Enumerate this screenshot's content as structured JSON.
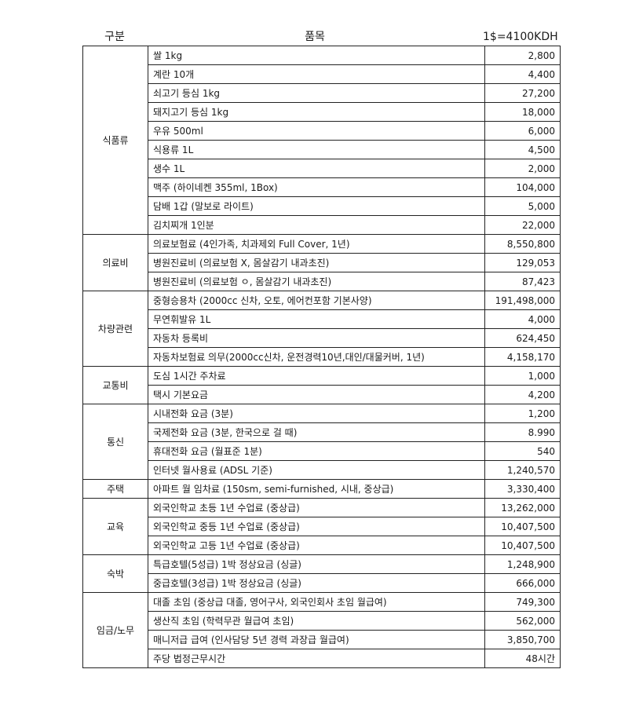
{
  "header": {
    "category": "구분",
    "item": "품목",
    "rate": "1$=4100KDH"
  },
  "groups": [
    {
      "category": "식품류",
      "rows": [
        {
          "item": "쌀 1kg",
          "value": "2,800"
        },
        {
          "item": "계란 10개",
          "value": "4,400"
        },
        {
          "item": "쇠고기 등심 1kg",
          "value": "27,200"
        },
        {
          "item": "돼지고기 등심 1kg",
          "value": "18,000"
        },
        {
          "item": "우유 500ml",
          "value": "6,000"
        },
        {
          "item": "식용류 1L",
          "value": "4,500"
        },
        {
          "item": "생수 1L",
          "value": "2,000"
        },
        {
          "item": "맥주 (하이네켄 355ml, 1Box)",
          "value": "104,000"
        },
        {
          "item": "담배 1갑 (말보로 라이트)",
          "value": "5,000"
        },
        {
          "item": "김치찌개 1인분",
          "value": "22,000"
        }
      ]
    },
    {
      "category": "의료비",
      "rows": [
        {
          "item": "의료보험료 (4인가족, 치과제외 Full Cover, 1년)",
          "value": "8,550,800"
        },
        {
          "item": "병원진료비 (의료보험 X, 몸살감기 내과초진)",
          "value": "129,053"
        },
        {
          "item": "병원진료비 (의료보험 ㅇ, 몸살감기 내과초진)",
          "value": "87,423"
        }
      ]
    },
    {
      "category": "차량관련",
      "rows": [
        {
          "item": "중형승용차 (2000cc 신차, 오토, 에어컨포함 기본사양)",
          "value": "191,498,000"
        },
        {
          "item": "무연휘발유 1L",
          "value": "4,000"
        },
        {
          "item": "자동차 등록비",
          "value": "624,450"
        },
        {
          "item": "자동차보험료 의무(2000cc신차, 운전경력10년,대인/대물커버, 1년)",
          "value": "4,158,170"
        }
      ]
    },
    {
      "category": "교통비",
      "rows": [
        {
          "item": "도심 1시간 주차료",
          "value": "1,000"
        },
        {
          "item": "택시 기본요금",
          "value": "4,200"
        }
      ]
    },
    {
      "category": "통신",
      "rows": [
        {
          "item": "시내전화 요금 (3분)",
          "value": "1,200"
        },
        {
          "item": "국제전화 요금 (3분, 한국으로 걸 때)",
          "value": "8.990"
        },
        {
          "item": "휴대전화 요금 (월표준 1분)",
          "value": "540"
        },
        {
          "item": "인터넷 월사용료 (ADSL 기준)",
          "value": "1,240,570"
        }
      ]
    },
    {
      "category": "주택",
      "rows": [
        {
          "item": "아파트 월 임차료 (150sm, semi-furnished, 시내, 중상급)",
          "value": "3,330,400"
        }
      ]
    },
    {
      "category": "교육",
      "rows": [
        {
          "item": "외국인학교 초등 1년 수업료 (중상급)",
          "value": "13,262,000"
        },
        {
          "item": "외국인학교 중등 1년 수업료 (중상급)",
          "value": "10,407,500"
        },
        {
          "item": "외국인학교 고등 1년 수업료 (중상급)",
          "value": "10,407,500"
        }
      ]
    },
    {
      "category": "숙박",
      "rows": [
        {
          "item": "특급호텔(5성급) 1박 정상요금 (싱글)",
          "value": "1,248,900"
        },
        {
          "item": "중급호텔(3성급) 1박 정상요금 (싱글)",
          "value": "666,000"
        }
      ]
    },
    {
      "category": "임금/노무",
      "rows": [
        {
          "item": "대졸 초임 (중상급 대졸, 영어구사, 외국인회사 초임 월급여)",
          "value": "749,300"
        },
        {
          "item": "생산직 초임 (학력무관 월급여 초임)",
          "value": "562,000"
        },
        {
          "item": "매니저급 급여 (인사담당 5년 경력 과장급 월급여)",
          "value": "3,850,700"
        },
        {
          "item": "주당 법정근무시간",
          "value": "48시간"
        }
      ]
    }
  ]
}
